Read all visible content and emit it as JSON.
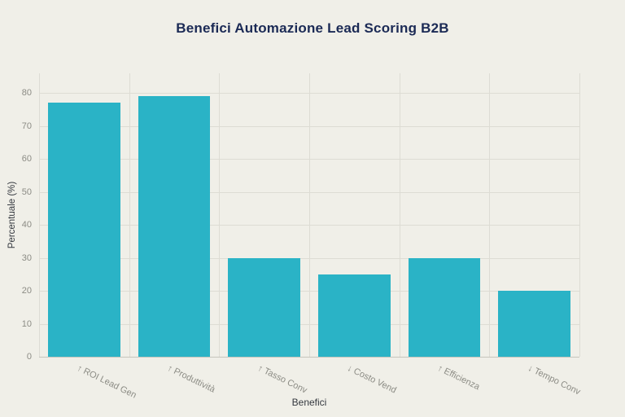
{
  "chart_data": {
    "type": "bar",
    "title": "Benefici Automazione Lead Scoring B2B",
    "categories": [
      "↑ ROI Lead Gen",
      "↑ Produttività",
      "↑ Tasso Conv",
      "↓ Costo Vend",
      "↑ Efficienza",
      "↓ Tempo Conv"
    ],
    "values": [
      77,
      79,
      30,
      25,
      30,
      20
    ],
    "xlabel": "Benefici",
    "ylabel": "Percentuale (%)",
    "ylim": [
      0,
      86
    ],
    "yticks": [
      0,
      10,
      20,
      30,
      40,
      50,
      60,
      70,
      80
    ],
    "grid": true,
    "legend": false,
    "bar_slot_fraction": 0.8,
    "colors": {
      "bar": "#2ab3c6",
      "background": "#f0efe8",
      "title": "#1b2a55",
      "tick": "#8c8c85",
      "grid": "#dddcd4",
      "axis_line": "#c6c5bd",
      "axis_label": "#34383f"
    }
  }
}
